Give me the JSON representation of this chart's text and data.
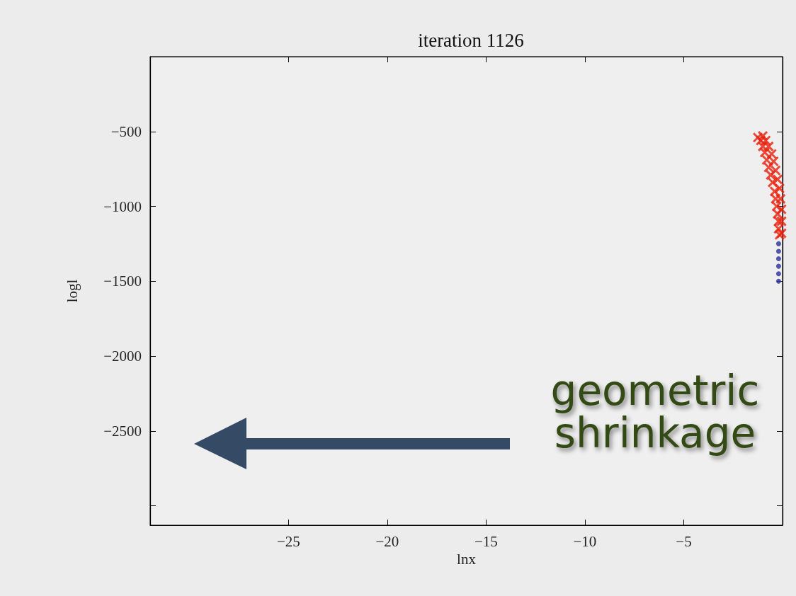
{
  "chart_data": {
    "type": "scatter",
    "title": "iteration 1126",
    "xlabel": "lnx",
    "ylabel": "logl",
    "annotations": [
      "geometric shrinkage"
    ],
    "series": [
      {
        "color": "#e8200c",
        "marker": "cross",
        "x": [
          -1.25,
          -1.1,
          -1.0,
          -0.9,
          -0.8,
          -0.7,
          -0.6,
          -0.5,
          -0.4,
          -0.35,
          -0.3,
          -0.25,
          -0.2,
          -0.2,
          -0.15,
          -1.0,
          -0.85,
          -0.7,
          -0.55,
          -0.45,
          -0.35,
          -0.25,
          -0.15,
          -0.1,
          -0.05,
          -0.05,
          -0.05
        ],
        "values": [
          -540,
          -560,
          -600,
          -640,
          -690,
          -740,
          -790,
          -840,
          -900,
          -950,
          -1000,
          -1050,
          -1100,
          -1150,
          -1190,
          -530,
          -560,
          -600,
          -650,
          -700,
          -760,
          -820,
          -880,
          -950,
          -1020,
          -1100,
          -1180
        ]
      },
      {
        "color": "#2a2f9a",
        "marker": "circle",
        "x": [
          -0.2,
          -0.2,
          -0.2,
          -0.2,
          -0.2,
          -0.2
        ],
        "values": [
          -1250,
          -1300,
          -1350,
          -1400,
          -1450,
          -1500
        ]
      }
    ],
    "xlim": [
      -32,
      0
    ],
    "xticks": [
      -25,
      -20,
      -15,
      -10,
      -5
    ],
    "ylim": [
      -3130,
      0
    ],
    "yticks": [
      -500,
      -1000,
      -1500,
      -2000,
      -2500,
      {
        "value": -3000,
        "label": null
      }
    ],
    "grid": false
  }
}
